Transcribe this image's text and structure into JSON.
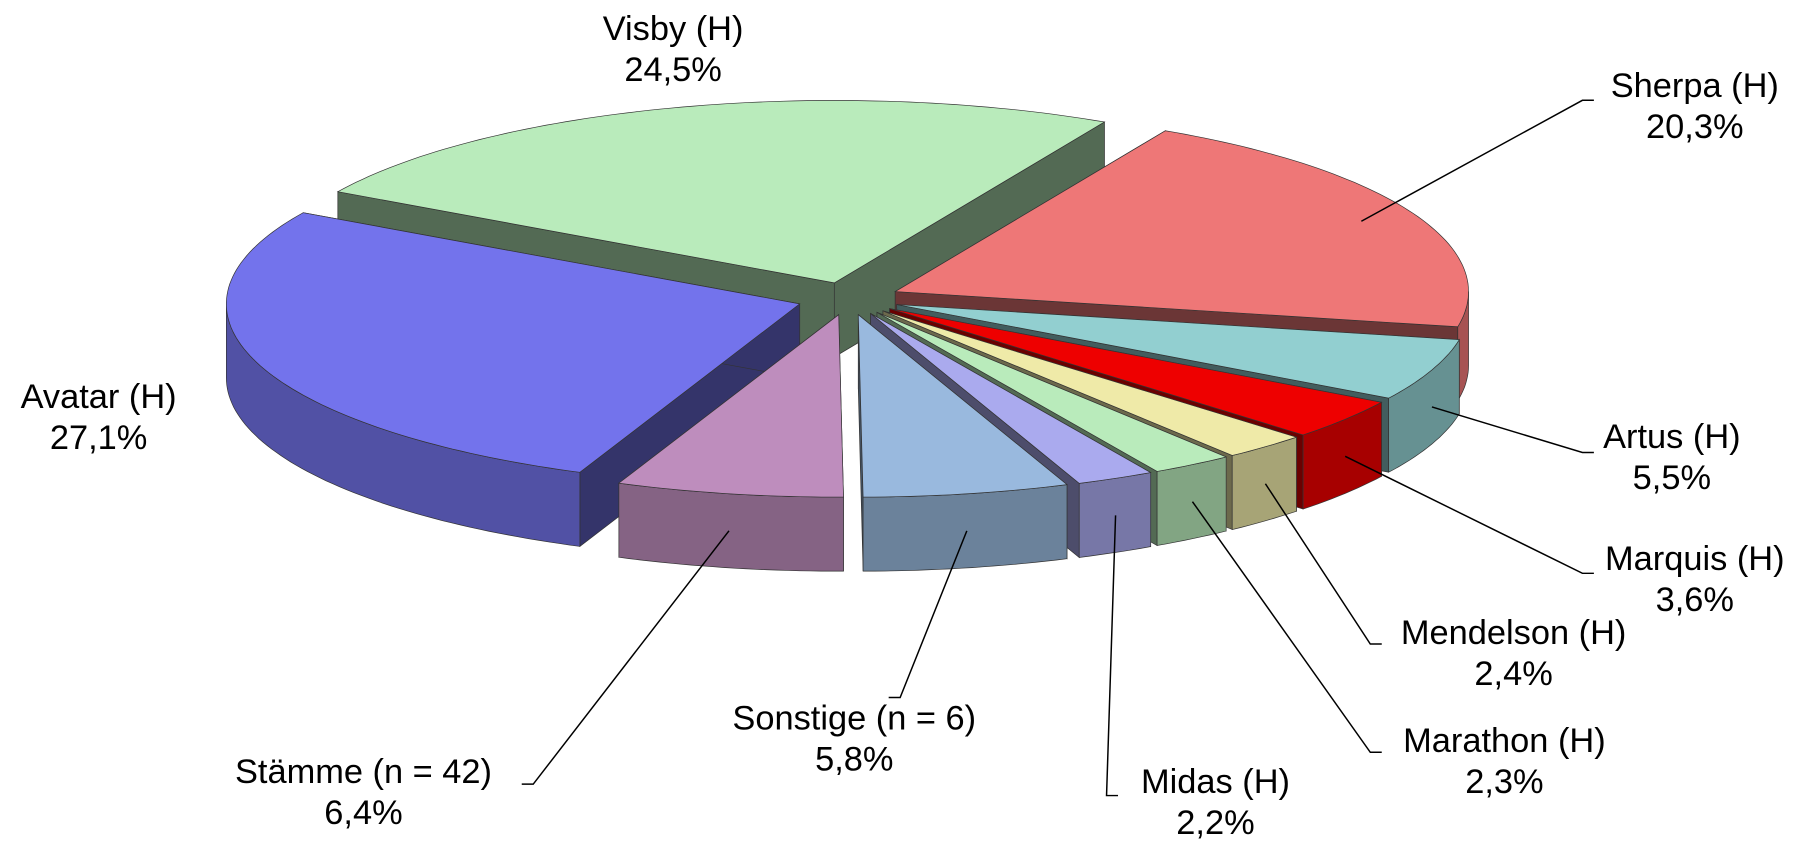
{
  "chart_data": {
    "type": "pie3d",
    "categories": [
      "Visby (H)",
      "Sherpa (H)",
      "Artus (H)",
      "Marquis (H)",
      "Mendelson (H)",
      "Marathon (H)",
      "Midas (H)",
      "Sonstige (n = 6)",
      "Stämme (n = 42)",
      "Avatar (H)"
    ],
    "values": [
      24.5,
      20.3,
      5.5,
      3.6,
      2.4,
      2.3,
      2.2,
      5.8,
      6.4,
      27.1
    ],
    "value_labels": [
      "24,5%",
      "20,3%",
      "5,5%",
      "3,6%",
      "2,4%",
      "2,3%",
      "2,2%",
      "5,8%",
      "6,4%",
      "27,1%"
    ],
    "colors": [
      "#b9ebbb",
      "#ee7777",
      "#92cfd0",
      "#ee0000",
      "#efeaa8",
      "#b9ebbb",
      "#aaaaee",
      "#99b9de",
      "#be8dbd",
      "#7373ec"
    ]
  }
}
